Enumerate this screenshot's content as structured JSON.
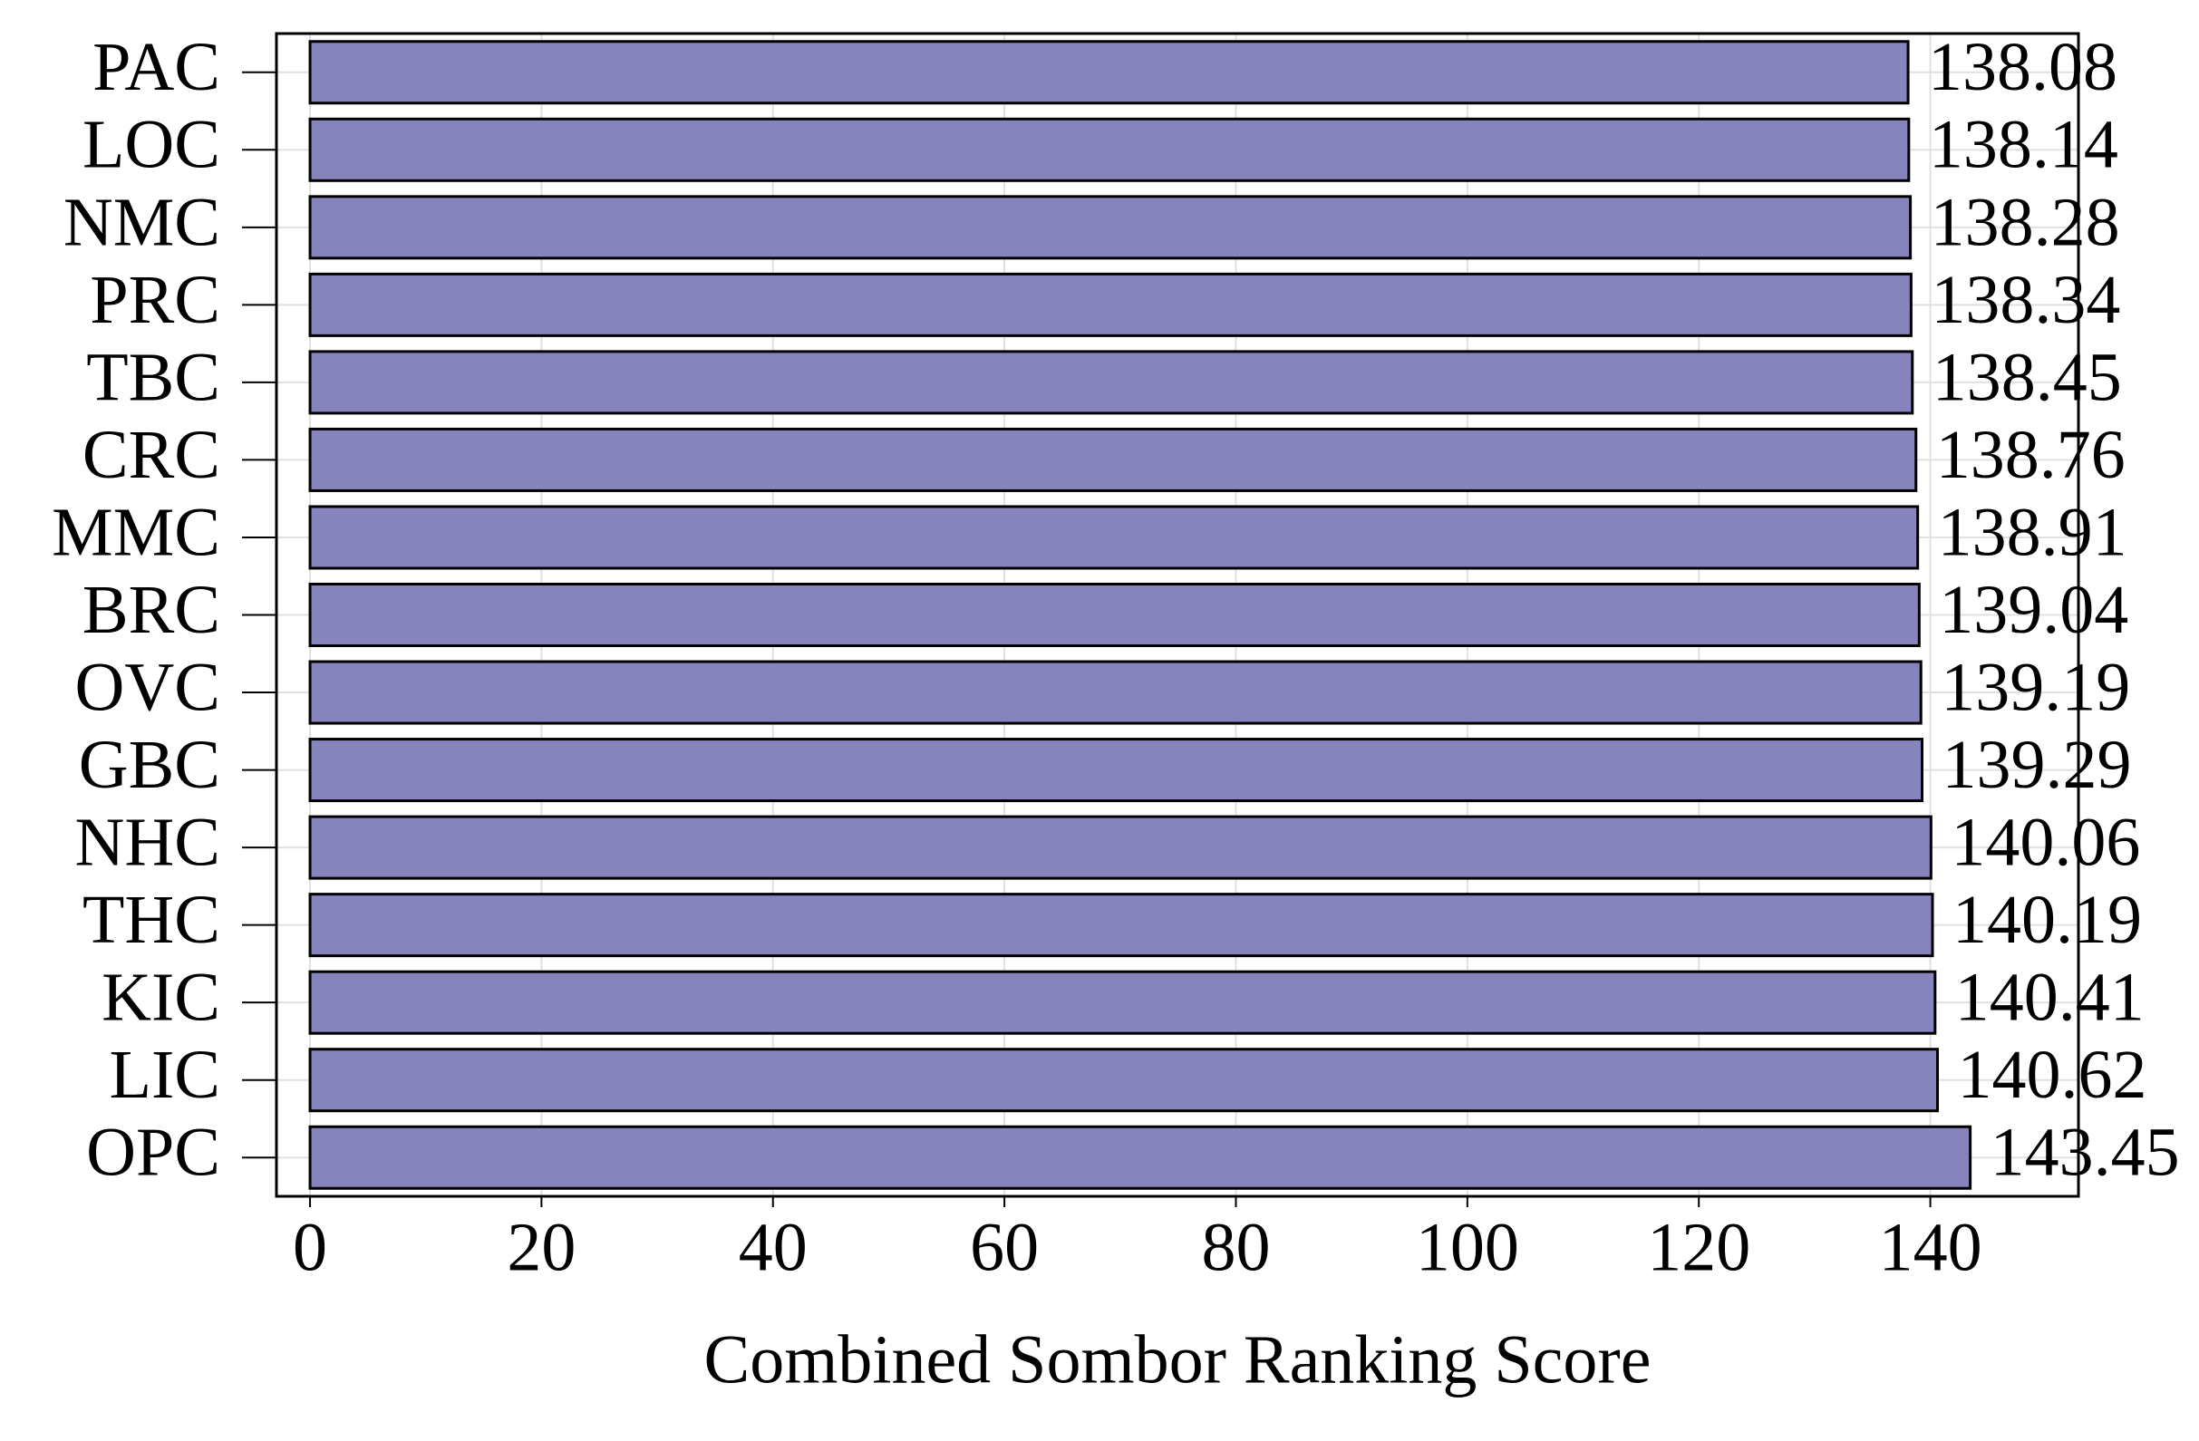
{
  "chart_data": {
    "type": "bar",
    "orientation": "horizontal",
    "xlabel": "Combined Sombor Ranking Score",
    "categories": [
      "PAC",
      "LOC",
      "NMC",
      "PRC",
      "TBC",
      "CRC",
      "MMC",
      "BRC",
      "OVC",
      "GBC",
      "NHC",
      "THC",
      "KIC",
      "LIC",
      "OPC"
    ],
    "values": [
      138.08,
      138.14,
      138.28,
      138.34,
      138.45,
      138.76,
      138.91,
      139.04,
      139.19,
      139.29,
      140.06,
      140.19,
      140.41,
      140.62,
      143.45
    ],
    "color": "#8783bd",
    "xlim": [
      -2.9,
      152.8
    ],
    "xticks": [
      0,
      20,
      40,
      60,
      80,
      100,
      120,
      140
    ],
    "grid": true
  }
}
